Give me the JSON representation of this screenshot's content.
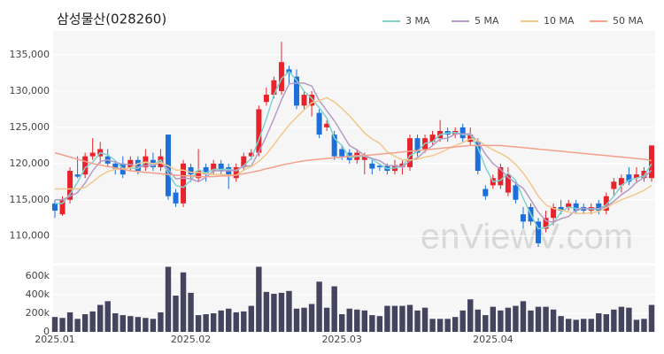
{
  "chart_data": [
    {
      "type": "candlestick",
      "title": "삼성물산(028260)",
      "watermark": "enViewV.com",
      "up_color": "#e8232c",
      "down_color": "#1e6fd9",
      "open": [
        114500,
        113000,
        115000,
        118500,
        118500,
        121000,
        121000,
        121000,
        120000,
        120000,
        119500,
        120500,
        119500,
        120500,
        119500,
        124000,
        116000,
        114500,
        119500,
        118000,
        119500,
        119000,
        120000,
        119500,
        118000,
        119500,
        121000,
        121500,
        128500,
        129500,
        130000,
        133000,
        132000,
        128000,
        128000,
        127000,
        125000,
        124000,
        122000,
        121500,
        120500,
        120500,
        120000,
        119700,
        119700,
        119000,
        119500,
        119500,
        123500,
        122000,
        123000,
        123500,
        124500,
        124000,
        125000,
        123000,
        123000,
        116500,
        117000,
        117000,
        116000,
        117000,
        113000,
        114000,
        112000,
        111000,
        112500,
        114000,
        114000,
        114500,
        114000,
        113500,
        114500,
        113500,
        116500,
        117000,
        118500,
        118000,
        118000,
        118000
      ],
      "high": [
        115000,
        115500,
        119500,
        121000,
        121500,
        123500,
        123000,
        122000,
        120500,
        121000,
        121000,
        121000,
        122000,
        121500,
        122000,
        124000,
        116500,
        120500,
        120000,
        122000,
        120000,
        120500,
        120500,
        120000,
        120000,
        121500,
        122000,
        128000,
        130500,
        132000,
        136800,
        133500,
        133000,
        130000,
        130000,
        127500,
        126000,
        124500,
        122500,
        122000,
        122000,
        121500,
        120500,
        120000,
        120000,
        120500,
        120500,
        124000,
        124000,
        124000,
        124500,
        126000,
        125000,
        125000,
        125500,
        125000,
        123500,
        117000,
        118500,
        120000,
        119500,
        117500,
        114000,
        114500,
        112500,
        113500,
        114500,
        115000,
        115000,
        115000,
        114500,
        114500,
        115000,
        116000,
        118000,
        118500,
        119500,
        119500,
        119500,
        122500
      ],
      "low": [
        112500,
        112800,
        114500,
        118000,
        118000,
        120500,
        120000,
        119500,
        118500,
        118000,
        119000,
        118500,
        119000,
        119000,
        119000,
        115000,
        114000,
        114000,
        117500,
        117500,
        117500,
        118500,
        118500,
        116500,
        117500,
        119000,
        120500,
        121000,
        128000,
        129000,
        129500,
        131000,
        127500,
        127500,
        126500,
        123500,
        124500,
        120500,
        120500,
        120000,
        120000,
        118500,
        118500,
        119000,
        118500,
        118500,
        118500,
        119000,
        121000,
        121500,
        122500,
        123000,
        123000,
        123500,
        123000,
        122500,
        118500,
        115000,
        116500,
        116500,
        115500,
        114500,
        111000,
        111500,
        108500,
        110500,
        111500,
        113000,
        113500,
        113000,
        113000,
        113000,
        113000,
        113000,
        115500,
        116000,
        117000,
        117500,
        117500,
        117500
      ],
      "close": [
        113500,
        115000,
        119000,
        118200,
        121000,
        121500,
        122000,
        120000,
        119300,
        118500,
        120500,
        119000,
        121000,
        119500,
        121000,
        115500,
        114500,
        120000,
        118500,
        119000,
        118500,
        120000,
        119000,
        118500,
        119500,
        121000,
        121500,
        127500,
        129500,
        131500,
        134000,
        132500,
        128000,
        129500,
        129500,
        124000,
        125500,
        121000,
        121000,
        120500,
        121500,
        121000,
        119300,
        119500,
        119000,
        119800,
        120000,
        123500,
        121500,
        123500,
        124000,
        124500,
        124000,
        124500,
        123500,
        124000,
        119000,
        115500,
        118000,
        119500,
        118500,
        115000,
        112000,
        112000,
        109000,
        112500,
        114000,
        113500,
        114500,
        113500,
        113500,
        114000,
        113500,
        115500,
        117500,
        118000,
        117500,
        118500,
        119000,
        122500
      ],
      "series": [
        {
          "name": "3 MA",
          "color": "#7fd3cf",
          "values": [
            114500,
            114500,
            115800,
            117400,
            119400,
            120200,
            121500,
            121200,
            120400,
            119300,
            119400,
            119300,
            120200,
            119800,
            120500,
            118700,
            117000,
            116700,
            117700,
            119200,
            118700,
            119200,
            119200,
            119200,
            119000,
            119700,
            120700,
            123300,
            126200,
            129500,
            131700,
            132700,
            131500,
            130000,
            129000,
            127700,
            126300,
            123500,
            122500,
            120800,
            121000,
            121000,
            120600,
            119900,
            119300,
            119400,
            119600,
            121100,
            121700,
            122800,
            123000,
            124000,
            124200,
            124300,
            124000,
            124000,
            122200,
            119500,
            117500,
            117700,
            118700,
            117700,
            115200,
            113000,
            111000,
            111200,
            111800,
            113300,
            114000,
            113800,
            113800,
            113700,
            113700,
            114300,
            115500,
            117000,
            117700,
            118000,
            118300,
            120000
          ]
        },
        {
          "name": "5 MA",
          "color": "#b49cc8",
          "values": [
            115000,
            115000,
            115500,
            116000,
            117300,
            119000,
            120300,
            120500,
            120200,
            119900,
            119900,
            119500,
            119700,
            119700,
            120200,
            119200,
            117900,
            118000,
            117900,
            117500,
            118100,
            119000,
            119000,
            119000,
            119100,
            119600,
            119700,
            121600,
            123800,
            126200,
            128800,
            131000,
            131100,
            131100,
            130700,
            128700,
            127300,
            125900,
            124200,
            122500,
            121900,
            121100,
            120700,
            120400,
            119700,
            119700,
            119500,
            120400,
            120800,
            121700,
            122500,
            123400,
            123500,
            124100,
            124100,
            124100,
            123000,
            121300,
            120000,
            119200,
            118100,
            117300,
            116600,
            115000,
            113300,
            112100,
            111900,
            112400,
            112700,
            113600,
            113800,
            113800,
            113800,
            114000,
            114800,
            115700,
            116400,
            117400,
            118100,
            119100
          ]
        },
        {
          "name": "10 MA",
          "color": "#f2c88c",
          "values": [
            116500,
            116500,
            116500,
            116500,
            116700,
            117500,
            118300,
            118900,
            119200,
            119300,
            119400,
            120000,
            120200,
            120000,
            120100,
            119700,
            119100,
            119100,
            118800,
            118800,
            118600,
            118500,
            118500,
            118400,
            118400,
            119100,
            119600,
            120300,
            121300,
            122600,
            124000,
            125300,
            126400,
            127400,
            128400,
            128700,
            129100,
            128500,
            127600,
            126600,
            125400,
            124200,
            123400,
            122800,
            121600,
            121000,
            120500,
            120500,
            120600,
            120900,
            121100,
            121500,
            122000,
            122500,
            122900,
            123400,
            123200,
            122500,
            121900,
            121400,
            120800,
            119900,
            118700,
            117200,
            115500,
            114300,
            113800,
            113600,
            113300,
            113100,
            113100,
            113200,
            113400,
            113900,
            114500,
            115000,
            115400,
            115800,
            116300,
            117000
          ]
        },
        {
          "name": "50 MA",
          "color": "#f4a08a",
          "values": [
            121500,
            121200,
            120900,
            120600,
            120300,
            120000,
            119800,
            119600,
            119400,
            119200,
            119000,
            118900,
            118800,
            118700,
            118600,
            118500,
            118400,
            118300,
            118300,
            118200,
            118200,
            118200,
            118300,
            118300,
            118400,
            118600,
            118800,
            119000,
            119300,
            119500,
            119800,
            120000,
            120200,
            120400,
            120500,
            120600,
            120700,
            120800,
            120900,
            121000,
            121100,
            121100,
            121200,
            121300,
            121400,
            121500,
            121600,
            121700,
            121800,
            121900,
            122000,
            122100,
            122200,
            122300,
            122400,
            122500,
            122500,
            122500,
            122500,
            122500,
            122400,
            122300,
            122200,
            122100,
            122000,
            121900,
            121800,
            121700,
            121600,
            121500,
            121400,
            121300,
            121200,
            121100,
            121000,
            120900,
            120800,
            120700,
            120600,
            120400
          ]
        }
      ],
      "ylim": [
        106300,
        138300
      ],
      "yticks": [
        {
          "value": 110000,
          "label": "110,000"
        },
        {
          "value": 115000,
          "label": "115,000"
        },
        {
          "value": 120000,
          "label": "120,000"
        },
        {
          "value": 125000,
          "label": "125,000"
        },
        {
          "value": 130000,
          "label": "130,000"
        },
        {
          "value": 135000,
          "label": "135,000"
        }
      ],
      "grid": true,
      "legend": "top-right"
    },
    {
      "type": "bar",
      "color": "#45445f",
      "categories": [
        "2025.01",
        null,
        null,
        null,
        null,
        null,
        null,
        null,
        null,
        null,
        null,
        null,
        null,
        null,
        null,
        null,
        null,
        null,
        "2025.02",
        null,
        null,
        null,
        null,
        null,
        null,
        null,
        null,
        null,
        null,
        null,
        null,
        null,
        null,
        null,
        null,
        null,
        null,
        null,
        "2025.03",
        null,
        null,
        null,
        null,
        null,
        null,
        null,
        null,
        null,
        null,
        null,
        null,
        null,
        null,
        null,
        null,
        null,
        null,
        null,
        "2025.04",
        null,
        null,
        null,
        null,
        null,
        null,
        null,
        null,
        null,
        null,
        null,
        null,
        null,
        null,
        null,
        null,
        null,
        null,
        null,
        null,
        null
      ],
      "values": [
        160000,
        150000,
        210000,
        140000,
        190000,
        220000,
        290000,
        330000,
        200000,
        180000,
        170000,
        160000,
        150000,
        140000,
        210000,
        700000,
        390000,
        640000,
        420000,
        180000,
        190000,
        200000,
        230000,
        250000,
        210000,
        220000,
        280000,
        700000,
        430000,
        410000,
        420000,
        440000,
        250000,
        260000,
        300000,
        540000,
        260000,
        490000,
        190000,
        250000,
        240000,
        230000,
        180000,
        170000,
        280000,
        280000,
        280000,
        290000,
        230000,
        260000,
        140000,
        140000,
        140000,
        160000,
        230000,
        350000,
        240000,
        180000,
        270000,
        230000,
        260000,
        280000,
        330000,
        230000,
        270000,
        270000,
        240000,
        170000,
        140000,
        130000,
        140000,
        140000,
        200000,
        190000,
        240000,
        270000,
        260000,
        130000,
        140000,
        290000
      ],
      "ylim": [
        0,
        714000
      ],
      "yticks": [
        0,
        {
          "value": 200000,
          "label": "200k"
        },
        {
          "value": 400000,
          "label": "400k"
        },
        {
          "value": 600000,
          "label": "600k"
        }
      ],
      "grid": true
    }
  ]
}
